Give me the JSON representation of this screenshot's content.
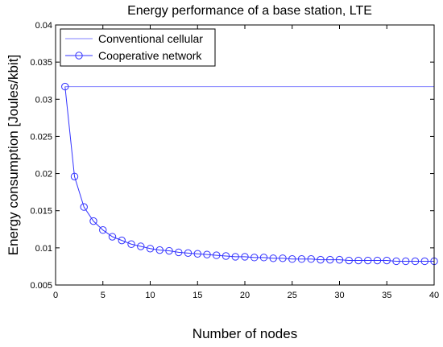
{
  "chart_data": {
    "type": "line",
    "title": "Energy performance of a base station, LTE",
    "xlabel": "Number of nodes",
    "ylabel": "Energy consumption [Joules/kbit]",
    "xlim": [
      0,
      40
    ],
    "ylim": [
      0.005,
      0.04
    ],
    "xticks": [
      0,
      5,
      10,
      15,
      20,
      25,
      30,
      35,
      40
    ],
    "xtick_labels": [
      "0",
      "5",
      "10",
      "15",
      "20",
      "25",
      "30",
      "35",
      "40"
    ],
    "yticks": [
      0.005,
      0.01,
      0.015,
      0.02,
      0.025,
      0.03,
      0.035,
      0.04
    ],
    "ytick_labels": [
      "0.005",
      "0.01",
      "0.015",
      "0.02",
      "0.025",
      "0.03",
      "0.035",
      "0.04"
    ],
    "grid": false,
    "legend_position": "top-left",
    "series": [
      {
        "name": "Conventional cellular",
        "color": "#8080ff",
        "marker": "none",
        "x": [
          1,
          40
        ],
        "y": [
          0.0317,
          0.0317
        ]
      },
      {
        "name": "Cooperative network",
        "color": "#3333ff",
        "marker": "circle",
        "x": [
          1,
          2,
          3,
          4,
          5,
          6,
          7,
          8,
          9,
          10,
          11,
          12,
          13,
          14,
          15,
          16,
          17,
          18,
          19,
          20,
          21,
          22,
          23,
          24,
          25,
          26,
          27,
          28,
          29,
          30,
          31,
          32,
          33,
          34,
          35,
          36,
          37,
          38,
          39,
          40
        ],
        "y": [
          0.0317,
          0.0196,
          0.0155,
          0.0136,
          0.0124,
          0.0115,
          0.011,
          0.0105,
          0.0102,
          0.0099,
          0.0097,
          0.0096,
          0.0094,
          0.0093,
          0.0092,
          0.0091,
          0.009,
          0.0089,
          0.0088,
          0.0088,
          0.0087,
          0.0087,
          0.0086,
          0.0086,
          0.0085,
          0.0085,
          0.0085,
          0.0084,
          0.0084,
          0.0084,
          0.0083,
          0.0083,
          0.0083,
          0.0083,
          0.0083,
          0.0082,
          0.0082,
          0.0082,
          0.0082,
          0.0082
        ]
      }
    ]
  }
}
